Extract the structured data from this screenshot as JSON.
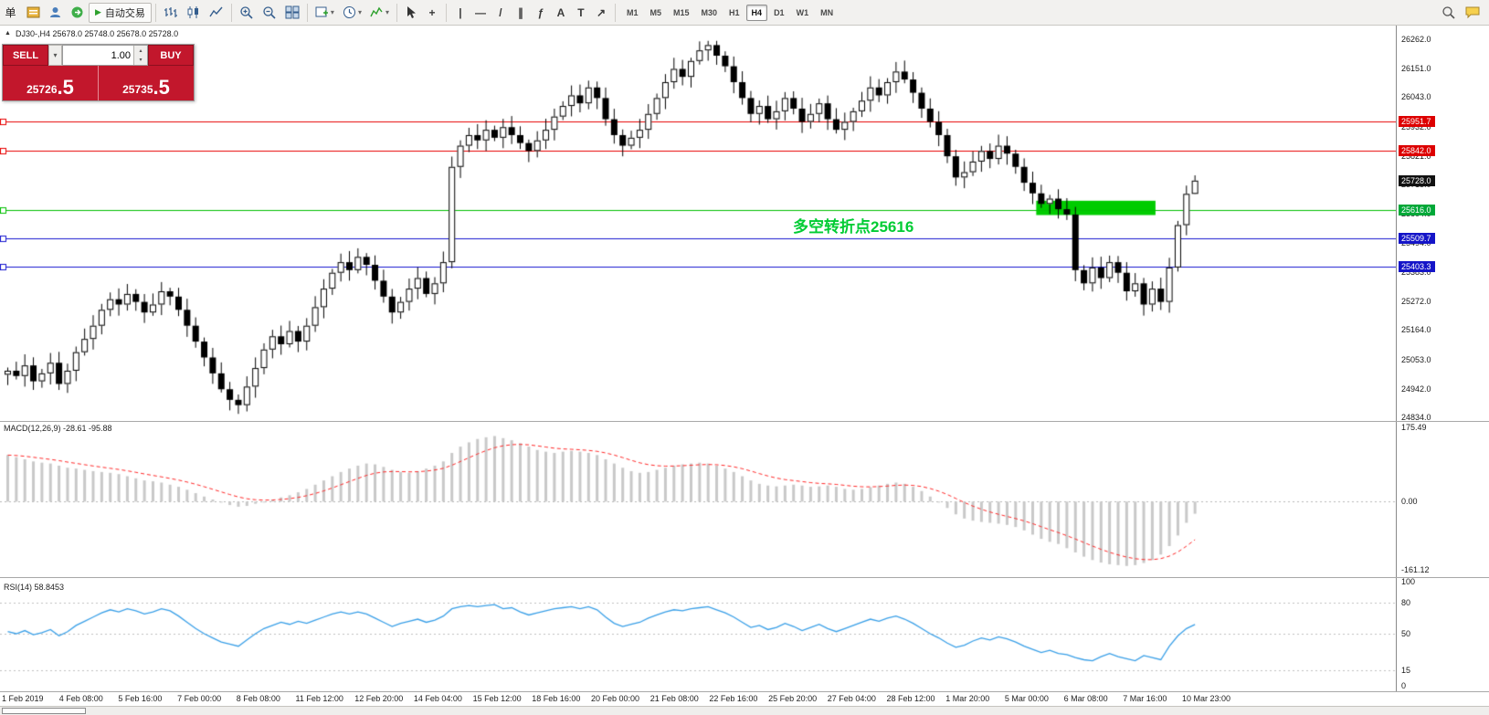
{
  "toolbar": {
    "order_label": "单",
    "autotrade_label": "自动交易",
    "timeframes": [
      "M1",
      "M5",
      "M15",
      "M30",
      "H1",
      "H4",
      "D1",
      "W1",
      "MN"
    ],
    "active_timeframe": "H4"
  },
  "icons": {
    "play": "▶",
    "dropdown": "▾",
    "spin_up": "▴",
    "spin_down": "▾",
    "collapse": "▲",
    "crosshair": "+",
    "tools": [
      {
        "name": "vertical-line-tool",
        "glyph": "|"
      },
      {
        "name": "horizontal-line-tool",
        "glyph": "—"
      },
      {
        "name": "trendline-tool",
        "glyph": "/"
      },
      {
        "name": "channel-tool",
        "glyph": "∥"
      },
      {
        "name": "fibonacci-tool",
        "glyph": "ƒ"
      },
      {
        "name": "text-tool",
        "glyph": "A"
      },
      {
        "name": "label-tool",
        "glyph": "T"
      },
      {
        "name": "arrows-tool",
        "glyph": "↗"
      }
    ]
  },
  "symbol_info": {
    "text": "DJ30-,H4  25678.0 25748.0 25678.0 25728.0"
  },
  "trade_panel": {
    "sell_label": "SELL",
    "buy_label": "BUY",
    "volume": "1.00",
    "sell_price_main": "25726",
    "sell_price_frac": ".5",
    "buy_price_main": "25735",
    "buy_price_frac": ".5"
  },
  "annotation": {
    "text": "多空转折点25616",
    "color": "#00cc33"
  },
  "indicators": {
    "macd_label": "MACD(12,26,9) -28.61 -95.88",
    "rsi_label": "RSI(14) 58.8453",
    "macd_axis": [
      "175.49",
      "0.00",
      "-161.12"
    ],
    "rsi_axis": [
      "100",
      "80",
      "50",
      "15",
      "0"
    ]
  },
  "time_axis": [
    "1 Feb 2019",
    "4 Feb 08:00",
    "5 Feb 16:00",
    "7 Feb 00:00",
    "8 Feb 08:00",
    "11 Feb 12:00",
    "12 Feb 20:00",
    "14 Feb 04:00",
    "15 Feb 12:00",
    "18 Feb 16:00",
    "20 Feb 00:00",
    "21 Feb 08:00",
    "22 Feb 16:00",
    "25 Feb 20:00",
    "27 Feb 04:00",
    "28 Feb 12:00",
    "1 Mar 20:00",
    "5 Mar 00:00",
    "6 Mar 08:00",
    "7 Mar 16:00",
    "10 Mar 23:00"
  ],
  "chart_data": {
    "type": "candlestick",
    "symbol": "DJ30-",
    "timeframe": "H4",
    "current_ohlc": {
      "open": 25678.0,
      "high": 25748.0,
      "low": 25678.0,
      "close": 25728.0
    },
    "y_axis": {
      "min": 24834.0,
      "max": 26262.0
    },
    "y_ticks": [
      26262.0,
      26151.0,
      26043.0,
      25932.0,
      25821.0,
      25713.0,
      25604.0,
      25494.0,
      25383.0,
      25272.0,
      25164.0,
      25053.0,
      24942.0,
      24834.0
    ],
    "badges": [
      {
        "value": 25951.7,
        "color": "#dd0000"
      },
      {
        "value": 25842.0,
        "color": "#dd0000"
      },
      {
        "value": 25728.0,
        "color": "#111111"
      },
      {
        "value": 25616.0,
        "color": "#00a838"
      },
      {
        "value": 25509.7,
        "color": "#1515c8"
      },
      {
        "value": 25403.3,
        "color": "#1515c8"
      }
    ],
    "levels": [
      {
        "price": 25951.7,
        "color": "#e80000"
      },
      {
        "price": 25842.0,
        "color": "#e80000"
      },
      {
        "price": 25616.0,
        "color": "#00c000"
      },
      {
        "price": 25509.7,
        "color": "#1515d0"
      },
      {
        "price": 25403.3,
        "color": "#1515d0"
      }
    ],
    "green_zone": {
      "from_index": 121,
      "to_index": 134,
      "price_top": 25652,
      "price_bottom": 25598,
      "color": "#00cc00"
    },
    "closes": [
      25010,
      24990,
      25030,
      24970,
      25000,
      25040,
      24960,
      25010,
      25080,
      25130,
      25180,
      25240,
      25280,
      25260,
      25300,
      25270,
      25230,
      25260,
      25310,
      25290,
      25240,
      25180,
      25120,
      25060,
      25000,
      24940,
      24900,
      24880,
      24950,
      25020,
      25090,
      25140,
      25110,
      25160,
      25120,
      25180,
      25250,
      25320,
      25380,
      25420,
      25390,
      25440,
      25410,
      25350,
      25290,
      25230,
      25270,
      25320,
      25360,
      25300,
      25340,
      25420,
      25780,
      25860,
      25900,
      25880,
      25920,
      25890,
      25930,
      25900,
      25870,
      25840,
      25880,
      25920,
      25970,
      26010,
      26050,
      26020,
      26080,
      26040,
      25960,
      25900,
      25860,
      25890,
      25920,
      25980,
      26040,
      26100,
      26150,
      26120,
      26180,
      26220,
      26240,
      26200,
      26160,
      26100,
      26040,
      25980,
      26010,
      25960,
      25990,
      26040,
      26000,
      25950,
      25980,
      26020,
      25960,
      25920,
      25950,
      25990,
      26030,
      26080,
      26050,
      26100,
      26140,
      26110,
      26060,
      26000,
      25950,
      25900,
      25820,
      25740,
      25760,
      25800,
      25840,
      25810,
      25860,
      25830,
      25780,
      25720,
      25680,
      25640,
      25660,
      25620,
      25600,
      25390,
      25340,
      25400,
      25360,
      25420,
      25380,
      25310,
      25340,
      25260,
      25320,
      25270,
      25400,
      25560,
      25678,
      25728
    ],
    "macd": {
      "params": "12,26,9",
      "current_main": -28.61,
      "current_signal": -95.88,
      "axis_max": 175.49,
      "axis_min": -161.12,
      "values": [
        110,
        105,
        100,
        95,
        92,
        90,
        85,
        80,
        78,
        75,
        72,
        70,
        68,
        65,
        60,
        55,
        50,
        48,
        45,
        40,
        35,
        28,
        20,
        12,
        5,
        -2,
        -8,
        -12,
        -10,
        -5,
        0,
        5,
        10,
        15,
        22,
        30,
        40,
        50,
        60,
        70,
        78,
        85,
        90,
        88,
        82,
        75,
        70,
        68,
        72,
        78,
        85,
        95,
        115,
        130,
        140,
        148,
        152,
        155,
        150,
        145,
        138,
        130,
        122,
        118,
        115,
        118,
        120,
        118,
        115,
        110,
        100,
        90,
        80,
        72,
        68,
        70,
        75,
        80,
        85,
        88,
        90,
        92,
        90,
        85,
        78,
        70,
        60,
        50,
        42,
        38,
        36,
        38,
        40,
        38,
        35,
        36,
        38,
        35,
        30,
        28,
        30,
        34,
        38,
        42,
        45,
        42,
        35,
        25,
        12,
        0,
        -15,
        -30,
        -40,
        -45,
        -48,
        -50,
        -52,
        -55,
        -60,
        -68,
        -78,
        -88,
        -95,
        -100,
        -110,
        -120,
        -130,
        -138,
        -144,
        -148,
        -150,
        -152,
        -150,
        -145,
        -138,
        -125,
        -105,
        -80,
        -50,
        -28.61
      ]
    },
    "rsi": {
      "period": 14,
      "current": 58.8453,
      "level_lines": [
        80,
        50,
        15
      ],
      "values": [
        52,
        50,
        53,
        49,
        51,
        54,
        48,
        52,
        58,
        62,
        66,
        70,
        73,
        71,
        74,
        72,
        69,
        71,
        74,
        72,
        67,
        61,
        55,
        50,
        46,
        42,
        40,
        38,
        44,
        50,
        55,
        58,
        61,
        59,
        62,
        60,
        63,
        66,
        69,
        71,
        69,
        71,
        69,
        65,
        61,
        57,
        60,
        62,
        64,
        61,
        63,
        67,
        74,
        76,
        77,
        76,
        77,
        78,
        74,
        75,
        71,
        68,
        70,
        72,
        74,
        75,
        76,
        74,
        76,
        73,
        66,
        60,
        57,
        59,
        61,
        65,
        68,
        71,
        73,
        72,
        74,
        75,
        76,
        73,
        70,
        66,
        61,
        56,
        58,
        54,
        56,
        60,
        57,
        53,
        56,
        59,
        55,
        52,
        55,
        58,
        61,
        64,
        62,
        65,
        67,
        64,
        60,
        55,
        50,
        46,
        41,
        37,
        39,
        43,
        46,
        44,
        47,
        45,
        42,
        38,
        35,
        32,
        34,
        31,
        30,
        27,
        25,
        24,
        28,
        31,
        28,
        26,
        24,
        29,
        27,
        25,
        38,
        48,
        55,
        58.8453
      ]
    }
  }
}
